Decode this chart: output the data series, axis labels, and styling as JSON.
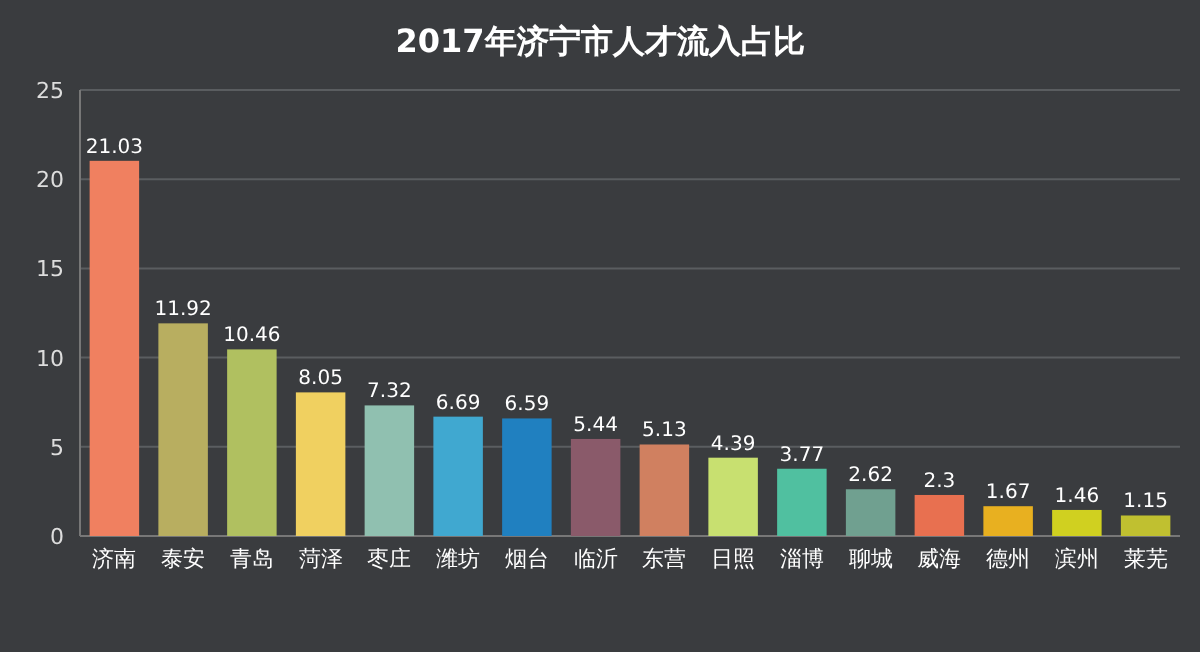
{
  "chart_data": {
    "type": "bar",
    "title": "2017年济宁市人才流入占比",
    "categories": [
      "济南",
      "泰安",
      "青岛",
      "菏泽",
      "枣庄",
      "潍坊",
      "烟台",
      "临沂",
      "东营",
      "日照",
      "淄博",
      "聊城",
      "威海",
      "德州",
      "滨州",
      "莱芜"
    ],
    "values": [
      21.03,
      11.92,
      10.46,
      8.05,
      7.32,
      6.69,
      6.59,
      5.44,
      5.13,
      4.39,
      3.77,
      2.62,
      2.3,
      1.67,
      1.46,
      1.15
    ],
    "colors": [
      "#f08060",
      "#b8ae60",
      "#b0c060",
      "#f0d060",
      "#90c0b0",
      "#40a8d0",
      "#2080c0",
      "#8a5a6a",
      "#d08060",
      "#c8e070",
      "#50c0a0",
      "#70a090",
      "#e87050",
      "#e8b020",
      "#d0d020",
      "#c0c030"
    ],
    "ylim": [
      0,
      25
    ],
    "yticks": [
      0,
      5,
      10,
      15,
      20,
      25
    ],
    "grid": "y",
    "data_labels": true
  }
}
